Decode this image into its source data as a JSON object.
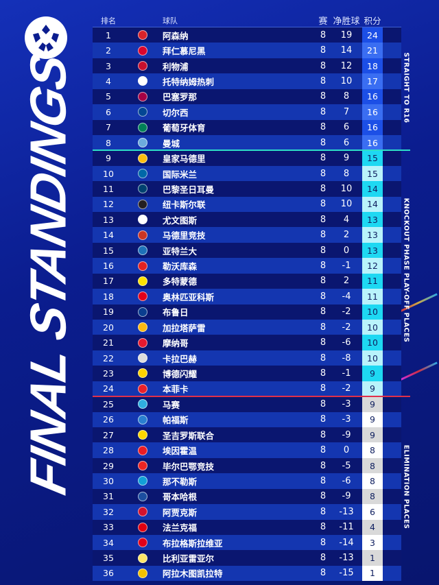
{
  "title": "FINAL STANDINGS",
  "header": {
    "rank": "排名",
    "team": "球队",
    "played": "赛",
    "gd": "净胜球",
    "pts": "积分"
  },
  "sections": [
    {
      "label": "STRAIGHT TO R16",
      "divider_color": "#2ee0c8",
      "pts_colors": [
        "#1c4fe6",
        "#3a6ef2"
      ],
      "pts_text": "#ffffff"
    },
    {
      "label": "KNOCKOUT PHASE PLAY-OFF PLACES",
      "divider_color": "#e0304a",
      "pts_colors": [
        "#1ed8f2",
        "#b9f3fb"
      ],
      "pts_text": "#102060"
    },
    {
      "label": "ELIMINATION PLACES",
      "pts_colors": [
        "#d9d9d9",
        "#ffffff"
      ],
      "pts_text": "#102060"
    }
  ],
  "rows": [
    {
      "rank": "1",
      "team": "阿森纳",
      "p": "8",
      "gd": "19",
      "pts": "24",
      "badge": "#d8232a"
    },
    {
      "rank": "2",
      "team": "拜仁慕尼黑",
      "p": "8",
      "gd": "14",
      "pts": "21",
      "badge": "#dc052d"
    },
    {
      "rank": "3",
      "team": "利物浦",
      "p": "8",
      "gd": "12",
      "pts": "18",
      "badge": "#c8102e"
    },
    {
      "rank": "4",
      "team": "托特纳姆热刺",
      "p": "8",
      "gd": "10",
      "pts": "17",
      "badge": "#ffffff"
    },
    {
      "rank": "5",
      "team": "巴塞罗那",
      "p": "8",
      "gd": "8",
      "pts": "16",
      "badge": "#a50044"
    },
    {
      "rank": "6",
      "team": "切尔西",
      "p": "8",
      "gd": "7",
      "pts": "16",
      "badge": "#034694"
    },
    {
      "rank": "7",
      "team": "葡萄牙体育",
      "p": "8",
      "gd": "6",
      "pts": "16",
      "badge": "#008057"
    },
    {
      "rank": "8",
      "team": "曼城",
      "p": "8",
      "gd": "6",
      "pts": "16",
      "badge": "#6cabdd"
    },
    {
      "rank": "9",
      "team": "皇家马德里",
      "p": "8",
      "gd": "9",
      "pts": "15",
      "badge": "#febe10"
    },
    {
      "rank": "10",
      "team": "国际米兰",
      "p": "8",
      "gd": "8",
      "pts": "15",
      "badge": "#0068a8"
    },
    {
      "rank": "11",
      "team": "巴黎圣日耳曼",
      "p": "8",
      "gd": "10",
      "pts": "14",
      "badge": "#004170"
    },
    {
      "rank": "12",
      "team": "纽卡斯尔联",
      "p": "8",
      "gd": "10",
      "pts": "14",
      "badge": "#241f20"
    },
    {
      "rank": "13",
      "team": "尤文图斯",
      "p": "8",
      "gd": "4",
      "pts": "13",
      "badge": "#ffffff"
    },
    {
      "rank": "14",
      "team": "马德里竞技",
      "p": "8",
      "gd": "2",
      "pts": "13",
      "badge": "#cb3524"
    },
    {
      "rank": "15",
      "team": "亚特兰大",
      "p": "8",
      "gd": "0",
      "pts": "13",
      "badge": "#1e71b8"
    },
    {
      "rank": "16",
      "team": "勒沃库森",
      "p": "8",
      "gd": "-1",
      "pts": "12",
      "badge": "#e32221"
    },
    {
      "rank": "17",
      "team": "多特蒙德",
      "p": "8",
      "gd": "2",
      "pts": "11",
      "badge": "#fde100"
    },
    {
      "rank": "18",
      "team": "奥林匹亚科斯",
      "p": "8",
      "gd": "-4",
      "pts": "11",
      "badge": "#e2001a"
    },
    {
      "rank": "19",
      "team": "布鲁日",
      "p": "8",
      "gd": "-2",
      "pts": "10",
      "badge": "#0a3d8f"
    },
    {
      "rank": "20",
      "team": "加拉塔萨雷",
      "p": "8",
      "gd": "-2",
      "pts": "10",
      "badge": "#fdb912"
    },
    {
      "rank": "21",
      "team": "摩纳哥",
      "p": "8",
      "gd": "-6",
      "pts": "10",
      "badge": "#e7192f"
    },
    {
      "rank": "22",
      "team": "卡拉巴赫",
      "p": "8",
      "gd": "-8",
      "pts": "10",
      "badge": "#dddddd"
    },
    {
      "rank": "23",
      "team": "博德闪耀",
      "p": "8",
      "gd": "-1",
      "pts": "9",
      "badge": "#ffd200"
    },
    {
      "rank": "24",
      "team": "本菲卡",
      "p": "8",
      "gd": "-2",
      "pts": "9",
      "badge": "#e8202a"
    },
    {
      "rank": "25",
      "team": "马赛",
      "p": "8",
      "gd": "-3",
      "pts": "9",
      "badge": "#2faee0"
    },
    {
      "rank": "26",
      "team": "帕福斯",
      "p": "8",
      "gd": "-3",
      "pts": "9",
      "badge": "#2a7fd0"
    },
    {
      "rank": "27",
      "team": "圣吉罗斯联合",
      "p": "8",
      "gd": "-9",
      "pts": "9",
      "badge": "#ffd700"
    },
    {
      "rank": "28",
      "team": "埃因霍温",
      "p": "8",
      "gd": "0",
      "pts": "8",
      "badge": "#ed1c24"
    },
    {
      "rank": "29",
      "team": "毕尔巴鄂竞技",
      "p": "8",
      "gd": "-5",
      "pts": "8",
      "badge": "#ee2523"
    },
    {
      "rank": "30",
      "team": "那不勒斯",
      "p": "8",
      "gd": "-6",
      "pts": "8",
      "badge": "#12a0d7"
    },
    {
      "rank": "31",
      "team": "哥本哈根",
      "p": "8",
      "gd": "-9",
      "pts": "8",
      "badge": "#1c4ea0"
    },
    {
      "rank": "32",
      "team": "阿贾克斯",
      "p": "8",
      "gd": "-13",
      "pts": "6",
      "badge": "#d2122e"
    },
    {
      "rank": "33",
      "team": "法兰克福",
      "p": "8",
      "gd": "-11",
      "pts": "4",
      "badge": "#e1000f"
    },
    {
      "rank": "34",
      "team": "布拉格斯拉维亚",
      "p": "8",
      "gd": "-14",
      "pts": "3",
      "badge": "#e2001a"
    },
    {
      "rank": "35",
      "team": "比利亚雷亚尔",
      "p": "8",
      "gd": "-13",
      "pts": "1",
      "badge": "#ffe667"
    },
    {
      "rank": "36",
      "team": "阿拉木图凯拉特",
      "p": "8",
      "gd": "-15",
      "pts": "1",
      "badge": "#f2c200"
    }
  ]
}
